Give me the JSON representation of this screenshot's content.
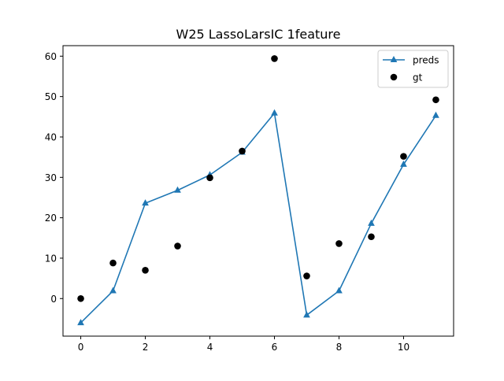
{
  "chart_data": {
    "type": "line",
    "title": "W25 LassoLarsIC 1feature",
    "xlabel": "",
    "ylabel": "",
    "xlim": [
      -0.55,
      11.55
    ],
    "ylim": [
      -9.3,
      62.6
    ],
    "xticks": [
      0,
      2,
      4,
      6,
      8,
      10
    ],
    "xtick_labels": [
      "0",
      "2",
      "4",
      "6",
      "8",
      "10"
    ],
    "yticks": [
      0,
      10,
      20,
      30,
      40,
      50,
      60
    ],
    "ytick_labels": [
      "0",
      "10",
      "20",
      "30",
      "40",
      "50",
      "60"
    ],
    "grid": false,
    "legend_position": "top-right",
    "x": [
      0,
      1,
      2,
      3,
      4,
      5,
      6,
      7,
      8,
      9,
      10,
      11
    ],
    "series": [
      {
        "name": "preds",
        "style": "line-triangle",
        "color": "#1f77b4",
        "values": [
          -6.0,
          1.9,
          23.6,
          26.8,
          30.6,
          36.2,
          45.9,
          -4.1,
          1.9,
          18.6,
          33.2,
          45.3
        ]
      },
      {
        "name": "gt",
        "style": "scatter-circle",
        "color": "#000000",
        "values": [
          0.0,
          8.8,
          7.0,
          13.0,
          29.9,
          36.5,
          59.4,
          5.6,
          13.6,
          15.3,
          35.2,
          49.2
        ]
      }
    ]
  }
}
